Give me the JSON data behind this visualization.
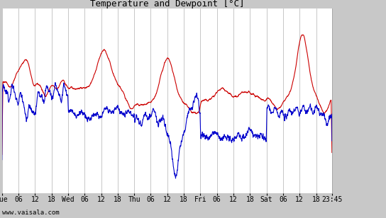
{
  "title": "Temperature and Dewpoint [°C]",
  "watermark": "www.vaisala.com",
  "ylim": [
    4,
    26
  ],
  "yticks": [
    4,
    6,
    8,
    10,
    12,
    14,
    16,
    18,
    20,
    22,
    24,
    26
  ],
  "temp_color": "#cc0000",
  "dew_color": "#0000cc",
  "bg_color": "#c8c8c8",
  "plot_bg": "#ffffff",
  "grid_color": "#b0b0b0",
  "line_width": 0.8,
  "figsize": [
    5.44,
    3.08
  ],
  "dpi": 100,
  "title_fontsize": 9,
  "tick_fontsize": 7,
  "watermark_fontsize": 6.5
}
